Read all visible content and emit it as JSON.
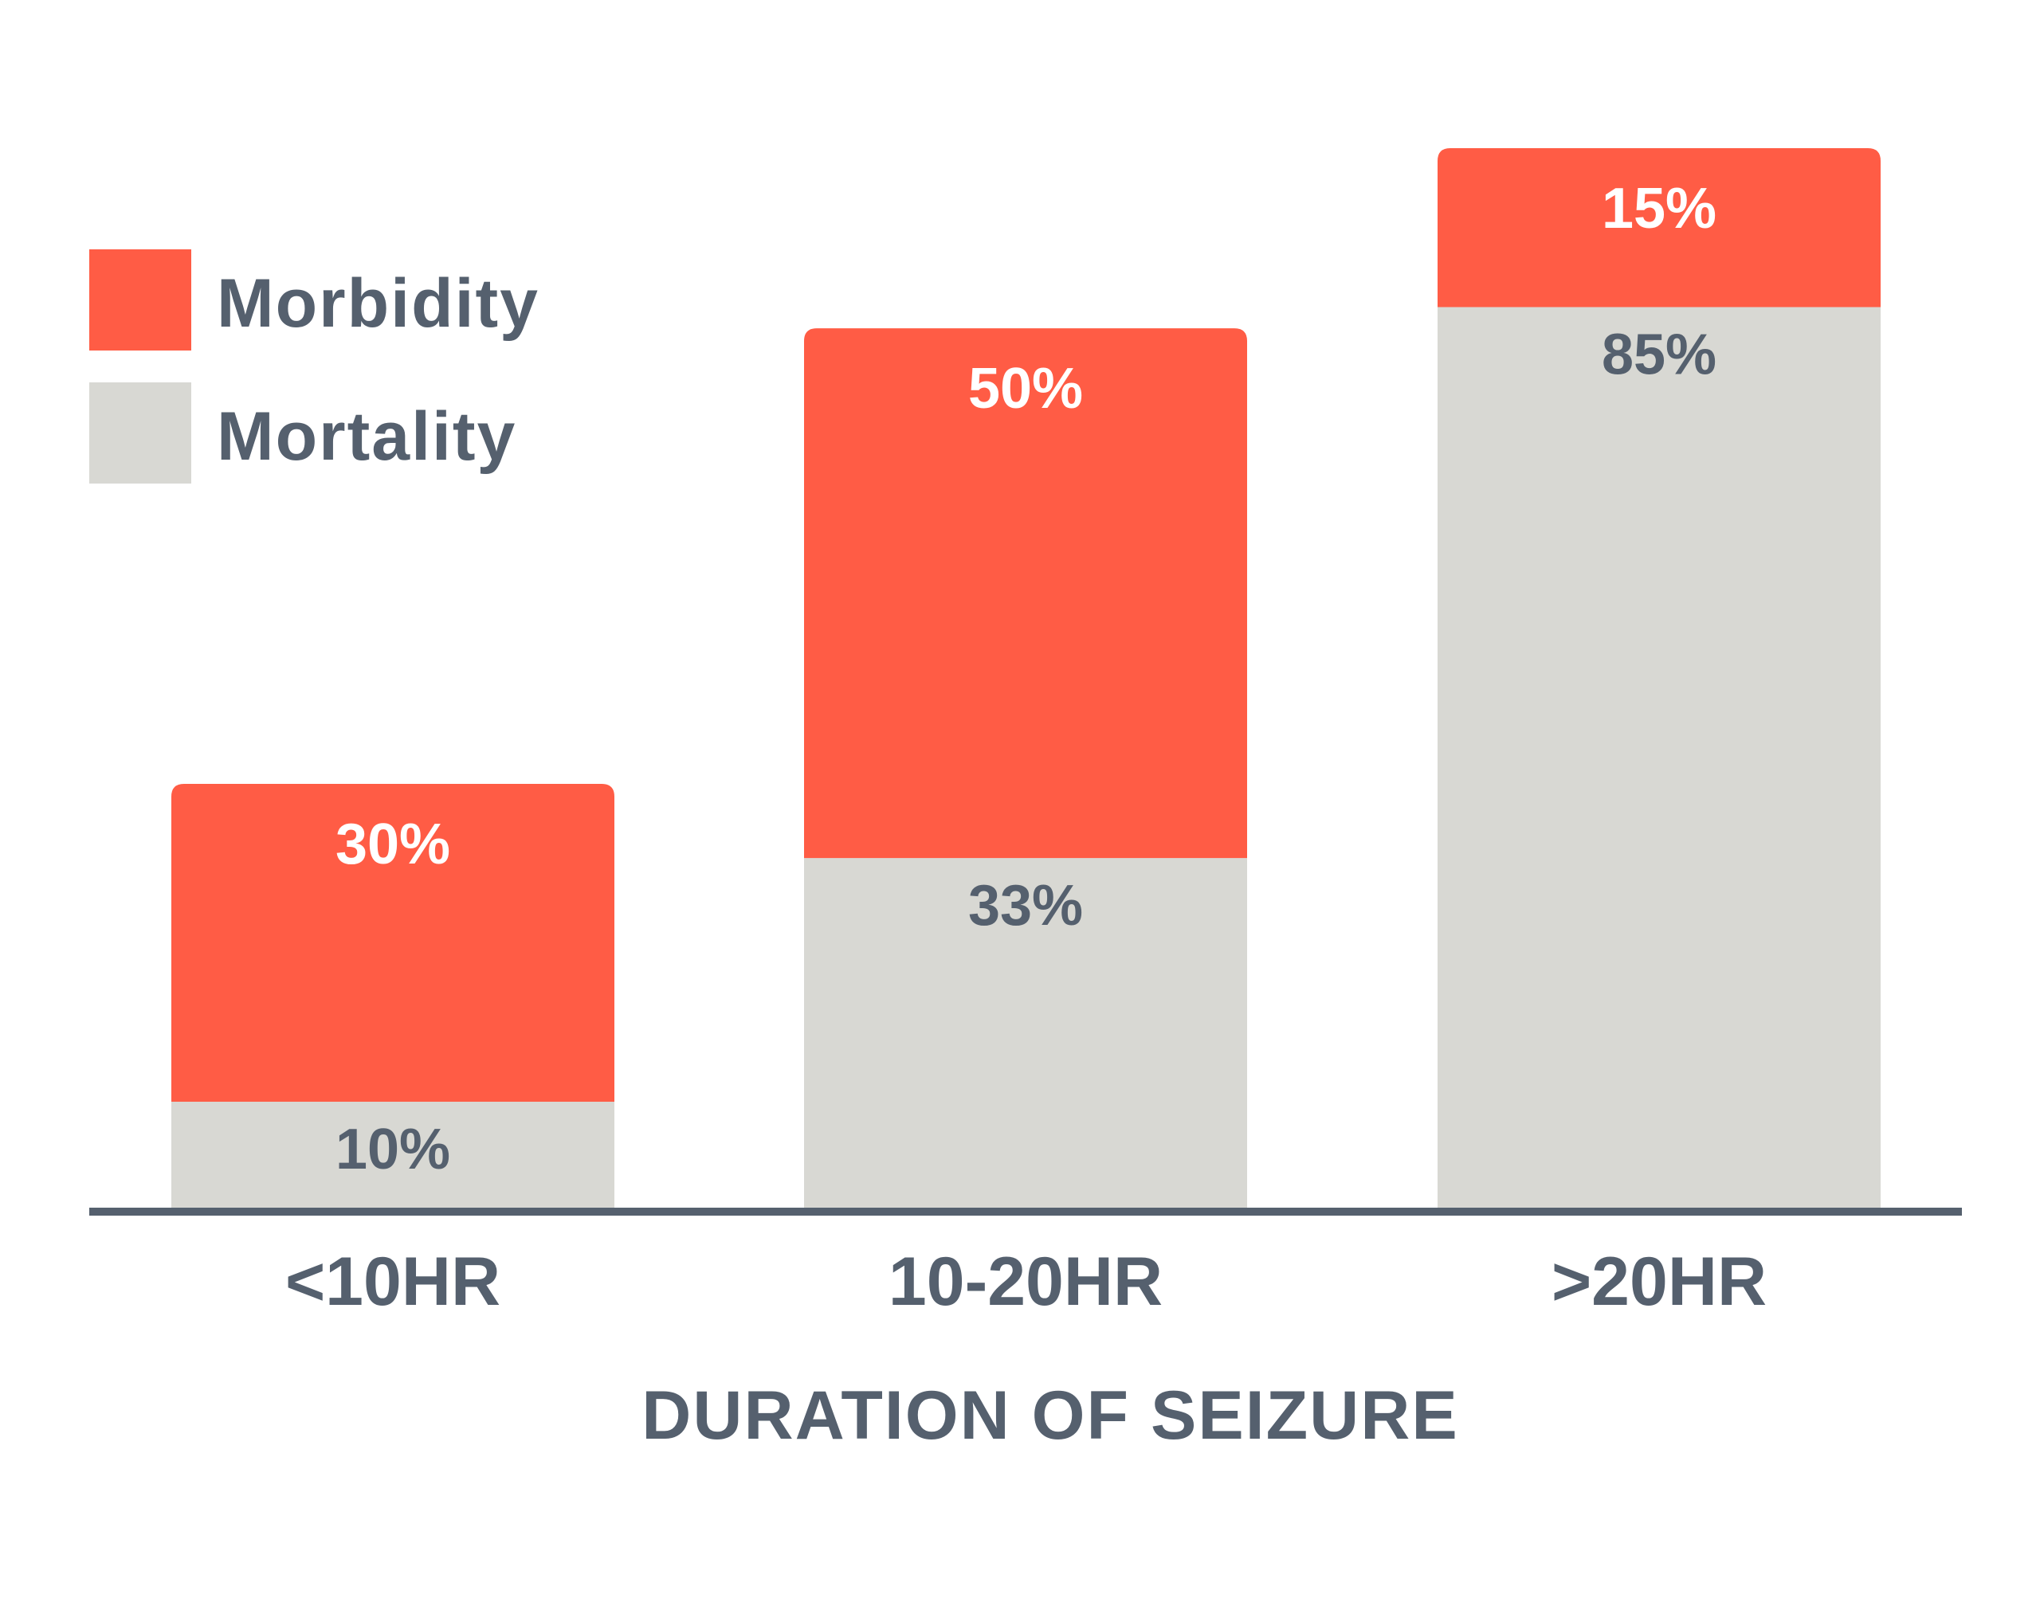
{
  "chart_data": {
    "type": "bar",
    "stacked": true,
    "categories": [
      "<10HR",
      "10-20HR",
      ">20HR"
    ],
    "series": [
      {
        "name": "Mortality",
        "values": [
          10,
          33,
          85
        ],
        "labels": [
          "10%",
          "33%",
          "85%"
        ]
      },
      {
        "name": "Morbidity",
        "values": [
          30,
          50,
          15
        ],
        "labels": [
          "30%",
          "50%",
          "15%"
        ]
      }
    ],
    "xlabel": "DURATION OF SEIZURE",
    "ylabel": "",
    "ylim": [
      0,
      100
    ],
    "grid": false,
    "legend_position": "top-left"
  },
  "colors": {
    "morbidity": "#FF5C45",
    "mortality": "#D8D8D3",
    "text_dark": "#55606E",
    "text_light": "#FFFFFF",
    "axis": "#55606E"
  },
  "legend": {
    "items": [
      {
        "name": "Morbidity",
        "color_key": "morbidity"
      },
      {
        "name": "Mortality",
        "color_key": "mortality"
      }
    ]
  }
}
